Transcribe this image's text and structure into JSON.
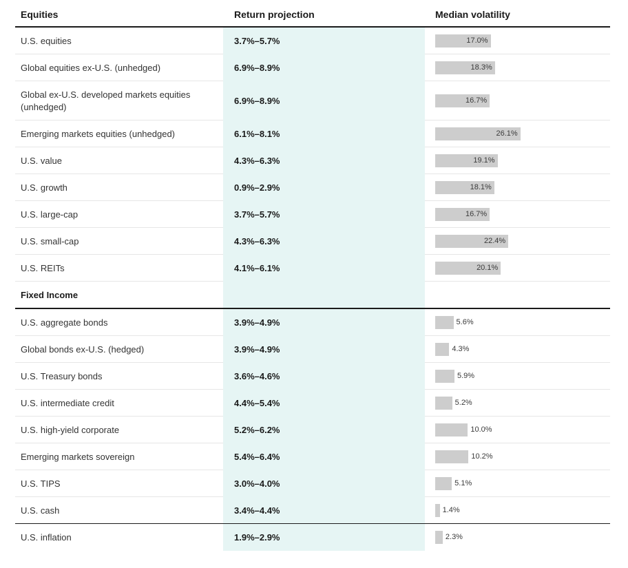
{
  "chart_data": {
    "type": "table",
    "columns": [
      "Equities",
      "Return projection",
      "Median volatility"
    ],
    "sections": [
      {
        "title": "Equities",
        "rows": [
          {
            "asset": "U.S. equities",
            "return_projection": "3.7%–5.7%",
            "volatility": 17.0,
            "volatility_label": "17.0%"
          },
          {
            "asset": "Global equities ex-U.S. (unhedged)",
            "return_projection": "6.9%–8.9%",
            "volatility": 18.3,
            "volatility_label": "18.3%"
          },
          {
            "asset": "Global ex-U.S. developed markets equities (unhedged)",
            "return_projection": "6.9%–8.9%",
            "volatility": 16.7,
            "volatility_label": "16.7%"
          },
          {
            "asset": "Emerging markets equities (unhedged)",
            "return_projection": "6.1%–8.1%",
            "volatility": 26.1,
            "volatility_label": "26.1%"
          },
          {
            "asset": "U.S. value",
            "return_projection": "4.3%–6.3%",
            "volatility": 19.1,
            "volatility_label": "19.1%"
          },
          {
            "asset": "U.S. growth",
            "return_projection": "0.9%–2.9%",
            "volatility": 18.1,
            "volatility_label": "18.1%"
          },
          {
            "asset": "U.S. large-cap",
            "return_projection": "3.7%–5.7%",
            "volatility": 16.7,
            "volatility_label": "16.7%"
          },
          {
            "asset": "U.S. small-cap",
            "return_projection": "4.3%–6.3%",
            "volatility": 22.4,
            "volatility_label": "22.4%"
          },
          {
            "asset": "U.S. REITs",
            "return_projection": "4.1%–6.1%",
            "volatility": 20.1,
            "volatility_label": "20.1%"
          }
        ]
      },
      {
        "title": "Fixed Income",
        "rows": [
          {
            "asset": "U.S. aggregate bonds",
            "return_projection": "3.9%–4.9%",
            "volatility": 5.6,
            "volatility_label": "5.6%"
          },
          {
            "asset": "Global bonds ex-U.S. (hedged)",
            "return_projection": "3.9%–4.9%",
            "volatility": 4.3,
            "volatility_label": "4.3%"
          },
          {
            "asset": "U.S. Treasury bonds",
            "return_projection": "3.6%–4.6%",
            "volatility": 5.9,
            "volatility_label": "5.9%"
          },
          {
            "asset": "U.S. intermediate credit",
            "return_projection": "4.4%–5.4%",
            "volatility": 5.2,
            "volatility_label": "5.2%"
          },
          {
            "asset": "U.S. high-yield corporate",
            "return_projection": "5.2%–6.2%",
            "volatility": 10.0,
            "volatility_label": "10.0%"
          },
          {
            "asset": "Emerging markets sovereign",
            "return_projection": "5.4%–6.4%",
            "volatility": 10.2,
            "volatility_label": "10.2%"
          },
          {
            "asset": "U.S. TIPS",
            "return_projection": "3.0%–4.0%",
            "volatility": 5.1,
            "volatility_label": "5.1%"
          },
          {
            "asset": "U.S. cash",
            "return_projection": "3.4%–4.4%",
            "volatility": 1.4,
            "volatility_label": "1.4%"
          }
        ]
      },
      {
        "title": "",
        "rows": [
          {
            "asset": "U.S. inflation",
            "return_projection": "1.9%–2.9%",
            "volatility": 2.3,
            "volatility_label": "2.3%"
          }
        ]
      }
    ]
  }
}
